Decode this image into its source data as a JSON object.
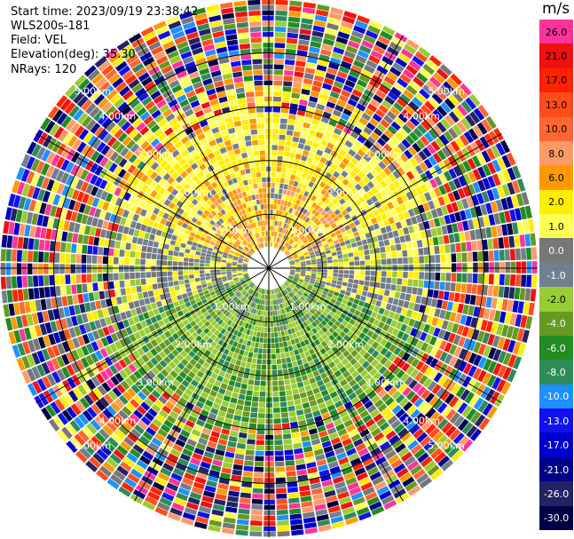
{
  "header": {
    "start_time": "Start time: 2023/09/19 23:38:42",
    "instrument": "WLS200s-181",
    "field": "Field: VEL",
    "elevation": "Elevation(deg): 35.30",
    "nrays": "NRays: 120"
  },
  "colorbar": {
    "units": "m/s",
    "bins": [
      {
        "label": "26.0",
        "color": "#ff3399"
      },
      {
        "label": "21.0",
        "color": "#ee1111"
      },
      {
        "label": "17.0",
        "color": "#ff2200"
      },
      {
        "label": "13.0",
        "color": "#ff4d1a"
      },
      {
        "label": "10.0",
        "color": "#ff6633"
      },
      {
        "label": "8.0",
        "color": "#ff9966"
      },
      {
        "label": "6.0",
        "color": "#ff9900"
      },
      {
        "label": "2.0",
        "color": "#ffee00"
      },
      {
        "label": "1.0",
        "color": "#ffff55"
      },
      {
        "label": "0.0",
        "color": "#777777"
      },
      {
        "label": "-1.0",
        "color": "#708090"
      },
      {
        "label": "-2.0",
        "color": "#99cc33"
      },
      {
        "label": "-4.0",
        "color": "#669922"
      },
      {
        "label": "-6.0",
        "color": "#228b22"
      },
      {
        "label": "-8.0",
        "color": "#2e8b57"
      },
      {
        "label": "-10.0",
        "color": "#1e90ff"
      },
      {
        "label": "-13.0",
        "color": "#1111ee"
      },
      {
        "label": "-17.0",
        "color": "#0000cd"
      },
      {
        "label": "-21.0",
        "color": "#00008b"
      },
      {
        "label": "-26.0",
        "color": "#222266"
      },
      {
        "label": "-30.0",
        "color": "#000044"
      }
    ]
  },
  "chart_data": {
    "type": "heatmap",
    "description_field": "Doppler radial velocity PPI scan",
    "units": "m/s",
    "range_rings_km": [
      1,
      2,
      3,
      4
    ],
    "ring_labels": [
      "1.00km",
      "2.00km",
      "3.00km",
      "4.00km"
    ],
    "outer_ring_label": "5.00km",
    "max_range_km": 5.0,
    "nrays": 120,
    "spokes_deg": [
      0,
      30,
      60,
      90,
      120,
      150,
      180,
      210,
      240,
      270,
      300,
      330
    ],
    "pattern_summary": {
      "north_sector": "positive velocities (1 to 6 m/s), yellow/orange",
      "south_sector": "negative velocities (-2 to -8 m/s), green",
      "east_west": "near zero (grey)",
      "beyond_3km": "noisy/random values across full scale"
    }
  }
}
